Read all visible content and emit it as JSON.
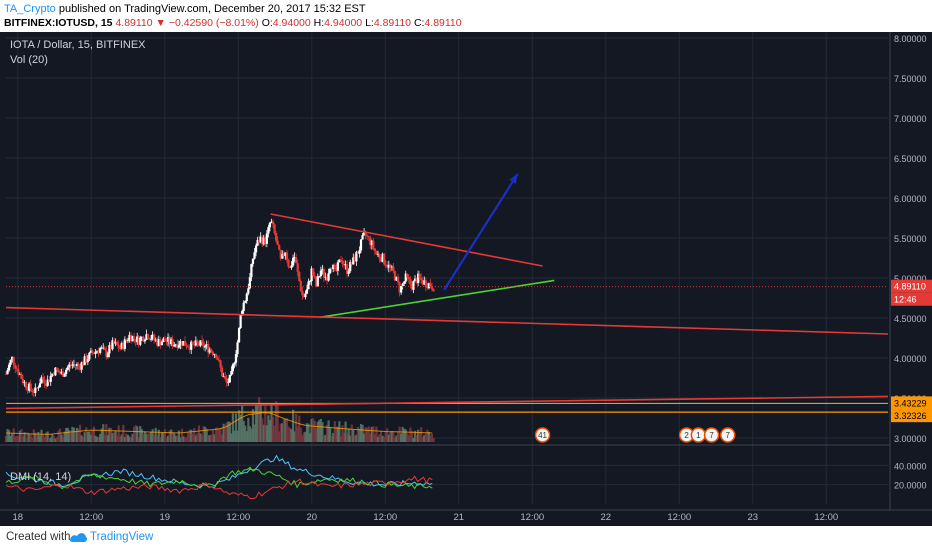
{
  "header": {
    "author": "TA_Crypto",
    "published": "published on TradingView.com, December 20, 2017 15:32 EST",
    "symbol": "BITFINEX:IOTUSD, 15",
    "last": "4.89110",
    "change": "▼ −0.42590 (−8.01%)",
    "o_label": "O:",
    "o": "4.94000",
    "h_label": "H:",
    "h": "4.94000",
    "l_label": "L:",
    "l": "4.89110",
    "c_label": "C:",
    "c": "4.89110"
  },
  "legend": {
    "title": "IOTA / Dollar, 15, BITFINEX",
    "vol": "Vol (20)",
    "dmi": "DMI (14, 14)"
  },
  "footer": {
    "created": "Created with",
    "brand": "TradingView"
  },
  "colors": {
    "background": "#141823",
    "up": "#ffffff",
    "down": "#e53935",
    "trend_red": "#e53935",
    "trend_green": "#4cd137",
    "arrow_blue": "#1a2fc4",
    "support_orange": "#ff9800",
    "vol_ma": "#ff9800",
    "dmi_plus": "#4cd137",
    "dmi_minus": "#e53935",
    "adx": "#4fc3f7"
  },
  "chart_data": {
    "type": "candlestick",
    "price_axis": {
      "min": 3.0,
      "max": 8.0,
      "ticks": [
        "8.00000",
        "7.50000",
        "7.00000",
        "6.50000",
        "6.00000",
        "5.50000",
        "5.00000",
        "4.50000",
        "4.00000",
        "3.50000",
        "3.00000"
      ]
    },
    "time_axis": {
      "labels": [
        "18",
        "12:00",
        "19",
        "12:00",
        "20",
        "12:00",
        "21",
        "12:00",
        "22",
        "12:00",
        "23",
        "12:00"
      ],
      "start_day": 17.92,
      "end_day": 23.92
    },
    "last_price": "4.89110",
    "countdown": "12:46",
    "support_labels": [
      "3.43229",
      "3.32326"
    ],
    "support_levels": [
      3.43229,
      3.32326
    ],
    "dmi_axis": {
      "ticks": [
        "40.0000",
        "20.0000"
      ],
      "min": 0,
      "max": 60
    },
    "price_points": [
      [
        17.92,
        3.8
      ],
      [
        17.96,
        4.0
      ],
      [
        18.0,
        3.85
      ],
      [
        18.04,
        3.7
      ],
      [
        18.08,
        3.62
      ],
      [
        18.12,
        3.58
      ],
      [
        18.16,
        3.75
      ],
      [
        18.2,
        3.7
      ],
      [
        18.25,
        3.85
      ],
      [
        18.3,
        3.8
      ],
      [
        18.36,
        3.92
      ],
      [
        18.42,
        3.9
      ],
      [
        18.5,
        4.05
      ],
      [
        18.56,
        4.12
      ],
      [
        18.6,
        4.05
      ],
      [
        18.65,
        4.18
      ],
      [
        18.7,
        4.12
      ],
      [
        18.76,
        4.28
      ],
      [
        18.82,
        4.22
      ],
      [
        18.88,
        4.3
      ],
      [
        18.95,
        4.2
      ],
      [
        19.0,
        4.22
      ],
      [
        19.06,
        4.18
      ],
      [
        19.12,
        4.2
      ],
      [
        19.18,
        4.15
      ],
      [
        19.24,
        4.17
      ],
      [
        19.3,
        4.12
      ],
      [
        19.35,
        4.05
      ],
      [
        19.39,
        3.8
      ],
      [
        19.42,
        3.68
      ],
      [
        19.45,
        3.75
      ],
      [
        19.48,
        4.05
      ],
      [
        19.5,
        4.25
      ],
      [
        19.52,
        4.6
      ],
      [
        19.55,
        4.75
      ],
      [
        19.58,
        5.0
      ],
      [
        19.6,
        5.25
      ],
      [
        19.62,
        5.4
      ],
      [
        19.65,
        5.5
      ],
      [
        19.68,
        5.45
      ],
      [
        19.7,
        5.55
      ],
      [
        19.72,
        5.72
      ],
      [
        19.74,
        5.6
      ],
      [
        19.76,
        5.45
      ],
      [
        19.79,
        5.2
      ],
      [
        19.82,
        5.35
      ],
      [
        19.85,
        5.1
      ],
      [
        19.88,
        5.3
      ],
      [
        19.91,
        5.0
      ],
      [
        19.94,
        4.75
      ],
      [
        19.97,
        4.85
      ],
      [
        20.0,
        5.1
      ],
      [
        20.03,
        4.9
      ],
      [
        20.06,
        5.1
      ],
      [
        20.1,
        5.0
      ],
      [
        20.13,
        5.2
      ],
      [
        20.16,
        5.05
      ],
      [
        20.2,
        5.25
      ],
      [
        20.24,
        5.1
      ],
      [
        20.28,
        5.2
      ],
      [
        20.32,
        5.35
      ],
      [
        20.36,
        5.55
      ],
      [
        20.4,
        5.45
      ],
      [
        20.44,
        5.3
      ],
      [
        20.48,
        5.25
      ],
      [
        20.52,
        5.15
      ],
      [
        20.56,
        5.05
      ],
      [
        20.6,
        4.85
      ],
      [
        20.64,
        5.0
      ],
      [
        20.68,
        4.9
      ],
      [
        20.72,
        5.0
      ],
      [
        20.76,
        4.95
      ],
      [
        20.8,
        4.92
      ],
      [
        20.83,
        4.89
      ]
    ],
    "volume_points": [
      [
        17.92,
        0.3
      ],
      [
        18.2,
        0.25
      ],
      [
        18.5,
        0.4
      ],
      [
        18.8,
        0.35
      ],
      [
        19.1,
        0.3
      ],
      [
        19.4,
        0.45
      ],
      [
        19.55,
        0.9
      ],
      [
        19.7,
        1.0
      ],
      [
        19.8,
        0.8
      ],
      [
        19.95,
        0.55
      ],
      [
        20.2,
        0.45
      ],
      [
        20.5,
        0.35
      ],
      [
        20.83,
        0.3
      ]
    ],
    "dmi_plus": [
      [
        17.92,
        22
      ],
      [
        18.1,
        28
      ],
      [
        18.3,
        18
      ],
      [
        18.5,
        30
      ],
      [
        18.7,
        26
      ],
      [
        18.9,
        20
      ],
      [
        19.1,
        24
      ],
      [
        19.3,
        18
      ],
      [
        19.45,
        32
      ],
      [
        19.6,
        36
      ],
      [
        19.75,
        30
      ],
      [
        19.9,
        20
      ],
      [
        20.1,
        26
      ],
      [
        20.3,
        24
      ],
      [
        20.5,
        20
      ],
      [
        20.7,
        18
      ],
      [
        20.83,
        19
      ]
    ],
    "dmi_minus": [
      [
        17.92,
        18
      ],
      [
        18.1,
        14
      ],
      [
        18.3,
        20
      ],
      [
        18.5,
        12
      ],
      [
        18.7,
        16
      ],
      [
        18.9,
        18
      ],
      [
        19.1,
        14
      ],
      [
        19.3,
        20
      ],
      [
        19.45,
        10
      ],
      [
        19.6,
        8
      ],
      [
        19.75,
        16
      ],
      [
        19.9,
        24
      ],
      [
        20.1,
        18
      ],
      [
        20.3,
        20
      ],
      [
        20.5,
        22
      ],
      [
        20.7,
        26
      ],
      [
        20.83,
        24
      ]
    ],
    "adx": [
      [
        17.92,
        30
      ],
      [
        18.1,
        26
      ],
      [
        18.3,
        20
      ],
      [
        18.5,
        28
      ],
      [
        18.7,
        34
      ],
      [
        18.9,
        28
      ],
      [
        19.1,
        22
      ],
      [
        19.3,
        18
      ],
      [
        19.45,
        26
      ],
      [
        19.6,
        38
      ],
      [
        19.75,
        48
      ],
      [
        19.9,
        36
      ],
      [
        20.1,
        28
      ],
      [
        20.3,
        22
      ],
      [
        20.5,
        20
      ],
      [
        20.7,
        22
      ],
      [
        20.83,
        21
      ]
    ],
    "trendlines": [
      {
        "name": "wedge-upper",
        "color": "red",
        "from": [
          19.72,
          5.8
        ],
        "to": [
          21.57,
          5.15
        ]
      },
      {
        "name": "wedge-lower",
        "color": "green",
        "from": [
          20.06,
          4.51
        ],
        "to": [
          21.65,
          4.97
        ]
      },
      {
        "name": "long-term-resistance",
        "color": "red",
        "from": [
          17.92,
          4.63
        ],
        "to": [
          23.92,
          4.3
        ]
      },
      {
        "name": "long-term-support",
        "color": "red",
        "from": [
          17.92,
          3.37
        ],
        "to": [
          23.92,
          3.52
        ]
      }
    ],
    "arrow": {
      "from": [
        20.9,
        4.85
      ],
      "to": [
        21.4,
        6.3
      ]
    },
    "events": [
      {
        "day": 21.57,
        "label": "41"
      },
      {
        "day": 22.55,
        "label": "2"
      },
      {
        "day": 22.63,
        "label": "1"
      },
      {
        "day": 22.72,
        "label": "7"
      },
      {
        "day": 22.83,
        "label": "7"
      }
    ]
  }
}
